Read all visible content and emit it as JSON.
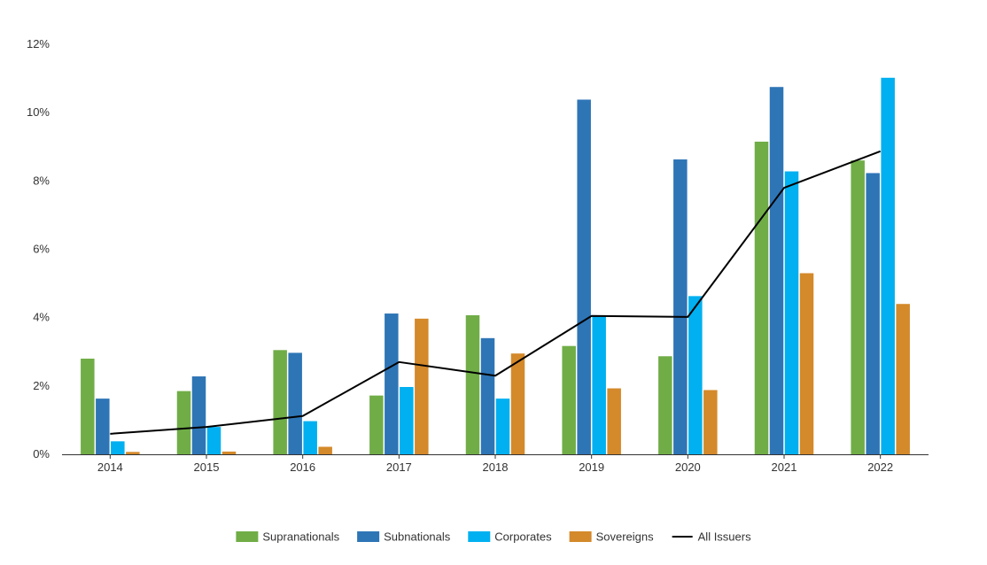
{
  "chart_data": {
    "type": "bar",
    "categories": [
      "2014",
      "2015",
      "2016",
      "2017",
      "2018",
      "2019",
      "2020",
      "2021",
      "2022"
    ],
    "series": [
      {
        "name": "Supranationals",
        "type": "bar",
        "color": "#70ad47",
        "values": [
          2.8,
          1.85,
          3.05,
          1.72,
          4.07,
          3.17,
          2.87,
          9.15,
          8.6
        ]
      },
      {
        "name": "Subnationals",
        "type": "bar",
        "color": "#2e75b6",
        "values": [
          1.63,
          2.28,
          2.97,
          4.12,
          3.4,
          10.38,
          8.63,
          10.75,
          8.23
        ]
      },
      {
        "name": "Corporates",
        "type": "bar",
        "color": "#00b0f0",
        "values": [
          0.38,
          0.8,
          0.97,
          1.97,
          1.63,
          4.05,
          4.63,
          8.28,
          11.02
        ]
      },
      {
        "name": "Sovereigns",
        "type": "bar",
        "color": "#d4892a",
        "values": [
          0.07,
          0.08,
          0.22,
          3.97,
          2.95,
          1.93,
          1.88,
          5.3,
          4.4
        ]
      },
      {
        "name": "All Issuers",
        "type": "line",
        "color": "#000000",
        "values": [
          0.6,
          0.8,
          1.12,
          2.7,
          2.3,
          4.05,
          4.02,
          7.8,
          8.87
        ]
      }
    ],
    "y_ticks": [
      "0%",
      "2%",
      "4%",
      "6%",
      "8%",
      "10%",
      "12%"
    ],
    "ylim": [
      0,
      12
    ],
    "y_unit": "%",
    "grid": false,
    "legend_position": "bottom-center"
  }
}
